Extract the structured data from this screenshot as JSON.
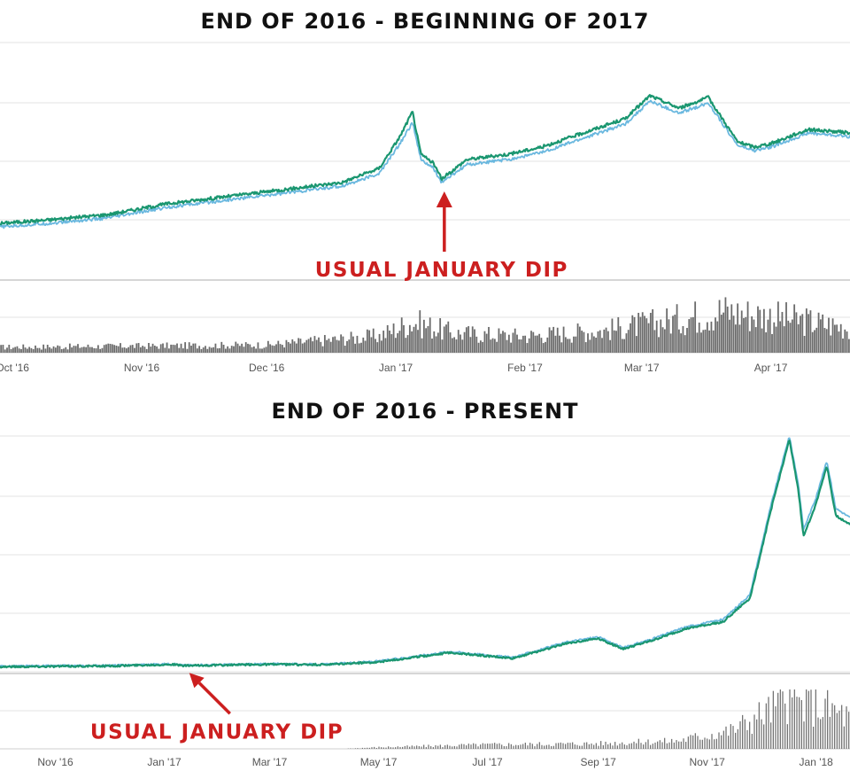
{
  "chart_data": [
    {
      "type": "line",
      "title": "END OF 2016 - BEGINNING OF 2017",
      "x_tick_labels": [
        "Oct '16",
        "Nov '16",
        "Dec '16",
        "Jan '17",
        "Feb '17",
        "Mar '17",
        "Apr '17"
      ],
      "x_range": [
        "2016-09-28",
        "2017-04-20"
      ],
      "grid": true,
      "series": [
        {
          "role": "price_line",
          "color": "#1a9670",
          "points": [
            [
              "2016-09-28",
              0.09
            ],
            [
              "2016-10-10",
              0.11
            ],
            [
              "2016-10-24",
              0.14
            ],
            [
              "2016-11-07",
              0.2
            ],
            [
              "2016-11-21",
              0.24
            ],
            [
              "2016-12-05",
              0.28
            ],
            [
              "2016-12-19",
              0.32
            ],
            [
              "2016-12-28",
              0.4
            ],
            [
              "2017-01-02",
              0.58
            ],
            [
              "2017-01-05",
              0.72
            ],
            [
              "2017-01-07",
              0.48
            ],
            [
              "2017-01-10",
              0.43
            ],
            [
              "2017-01-12",
              0.34
            ],
            [
              "2017-01-18",
              0.45
            ],
            [
              "2017-01-28",
              0.48
            ],
            [
              "2017-02-05",
              0.52
            ],
            [
              "2017-02-15",
              0.6
            ],
            [
              "2017-02-25",
              0.68
            ],
            [
              "2017-03-03",
              0.81
            ],
            [
              "2017-03-10",
              0.74
            ],
            [
              "2017-03-17",
              0.8
            ],
            [
              "2017-03-24",
              0.55
            ],
            [
              "2017-03-28",
              0.52
            ],
            [
              "2017-04-01",
              0.54
            ],
            [
              "2017-04-10",
              0.62
            ],
            [
              "2017-04-20",
              0.6
            ]
          ]
        },
        {
          "role": "secondary_line",
          "color": "#6ab8df",
          "points": [
            [
              "2016-09-28",
              0.07
            ],
            [
              "2016-10-10",
              0.09
            ],
            [
              "2016-10-24",
              0.12
            ],
            [
              "2016-11-07",
              0.18
            ],
            [
              "2016-11-21",
              0.22
            ],
            [
              "2016-12-05",
              0.26
            ],
            [
              "2016-12-19",
              0.3
            ],
            [
              "2016-12-28",
              0.37
            ],
            [
              "2017-01-02",
              0.54
            ],
            [
              "2017-01-05",
              0.66
            ],
            [
              "2017-01-07",
              0.45
            ],
            [
              "2017-01-10",
              0.4
            ],
            [
              "2017-01-12",
              0.32
            ],
            [
              "2017-01-18",
              0.42
            ],
            [
              "2017-01-28",
              0.45
            ],
            [
              "2017-02-05",
              0.49
            ],
            [
              "2017-02-15",
              0.57
            ],
            [
              "2017-02-25",
              0.65
            ],
            [
              "2017-03-03",
              0.78
            ],
            [
              "2017-03-10",
              0.71
            ],
            [
              "2017-03-17",
              0.77
            ],
            [
              "2017-03-24",
              0.53
            ],
            [
              "2017-03-28",
              0.5
            ],
            [
              "2017-04-01",
              0.52
            ],
            [
              "2017-04-10",
              0.6
            ],
            [
              "2017-04-20",
              0.58
            ]
          ]
        }
      ],
      "volume": {
        "color": "#6b6b6b",
        "points": [
          [
            "2016-09-28",
            0.1
          ],
          [
            "2016-11-01",
            0.12
          ],
          [
            "2016-12-01",
            0.14
          ],
          [
            "2016-12-28",
            0.3
          ],
          [
            "2017-01-05",
            0.55
          ],
          [
            "2017-01-15",
            0.35
          ],
          [
            "2017-02-01",
            0.3
          ],
          [
            "2017-02-20",
            0.4
          ],
          [
            "2017-03-10",
            0.6
          ],
          [
            "2017-03-20",
            0.75
          ],
          [
            "2017-04-01",
            0.65
          ],
          [
            "2017-04-20",
            0.45
          ]
        ]
      },
      "annotation": {
        "text": "USUAL JANUARY DIP",
        "color": "#cc1f1f",
        "date": "2017-01-12"
      }
    },
    {
      "type": "line",
      "title": "END OF 2016 - PRESENT",
      "x_tick_labels": [
        "Nov '16",
        "Jan '17",
        "Mar '17",
        "May '17",
        "Jul '17",
        "Sep '17",
        "Nov '17",
        "Jan '18"
      ],
      "x_range": [
        "2016-10-01",
        "2018-01-20"
      ],
      "grid": true,
      "series": [
        {
          "role": "price_line",
          "color": "#1a9670",
          "points": [
            [
              "2016-10-01",
              0.01
            ],
            [
              "2016-12-01",
              0.013
            ],
            [
              "2017-01-05",
              0.02
            ],
            [
              "2017-01-12",
              0.014
            ],
            [
              "2017-03-01",
              0.02
            ],
            [
              "2017-04-01",
              0.018
            ],
            [
              "2017-05-01",
              0.03
            ],
            [
              "2017-06-10",
              0.07
            ],
            [
              "2017-07-15",
              0.045
            ],
            [
              "2017-08-15",
              0.11
            ],
            [
              "2017-09-01",
              0.13
            ],
            [
              "2017-09-15",
              0.085
            ],
            [
              "2017-10-01",
              0.12
            ],
            [
              "2017-10-20",
              0.17
            ],
            [
              "2017-11-10",
              0.2
            ],
            [
              "2017-11-25",
              0.3
            ],
            [
              "2017-12-07",
              0.68
            ],
            [
              "2017-12-17",
              0.97
            ],
            [
              "2017-12-22",
              0.76
            ],
            [
              "2017-12-25",
              0.56
            ],
            [
              "2018-01-01",
              0.7
            ],
            [
              "2018-01-07",
              0.86
            ],
            [
              "2018-01-12",
              0.65
            ],
            [
              "2018-01-20",
              0.61
            ]
          ]
        },
        {
          "role": "secondary_line",
          "color": "#6ab8df",
          "points": [
            [
              "2016-10-01",
              0.012
            ],
            [
              "2016-12-01",
              0.015
            ],
            [
              "2017-01-05",
              0.022
            ],
            [
              "2017-01-12",
              0.016
            ],
            [
              "2017-03-01",
              0.022
            ],
            [
              "2017-04-01",
              0.02
            ],
            [
              "2017-05-01",
              0.033
            ],
            [
              "2017-06-10",
              0.074
            ],
            [
              "2017-07-15",
              0.049
            ],
            [
              "2017-08-15",
              0.115
            ],
            [
              "2017-09-01",
              0.136
            ],
            [
              "2017-09-15",
              0.09
            ],
            [
              "2017-10-01",
              0.127
            ],
            [
              "2017-10-20",
              0.178
            ],
            [
              "2017-11-10",
              0.21
            ],
            [
              "2017-11-25",
              0.315
            ],
            [
              "2017-12-07",
              0.7
            ],
            [
              "2017-12-17",
              0.985
            ],
            [
              "2017-12-22",
              0.785
            ],
            [
              "2017-12-25",
              0.59
            ],
            [
              "2018-01-01",
              0.725
            ],
            [
              "2018-01-07",
              0.88
            ],
            [
              "2018-01-12",
              0.68
            ],
            [
              "2018-01-20",
              0.64
            ]
          ]
        }
      ],
      "volume": {
        "color": "#6b6b6b",
        "points": [
          [
            "2016-10-01",
            0.0
          ],
          [
            "2017-04-10",
            0.0
          ],
          [
            "2017-05-01",
            0.03
          ],
          [
            "2017-07-01",
            0.08
          ],
          [
            "2017-09-01",
            0.1
          ],
          [
            "2017-10-15",
            0.15
          ],
          [
            "2017-11-15",
            0.35
          ],
          [
            "2017-12-15",
            0.9
          ],
          [
            "2018-01-05",
            0.8
          ],
          [
            "2018-01-20",
            0.6
          ]
        ]
      },
      "annotation": {
        "text": "USUAL JANUARY DIP",
        "color": "#cc1f1f",
        "date": "2017-01-12"
      }
    }
  ]
}
